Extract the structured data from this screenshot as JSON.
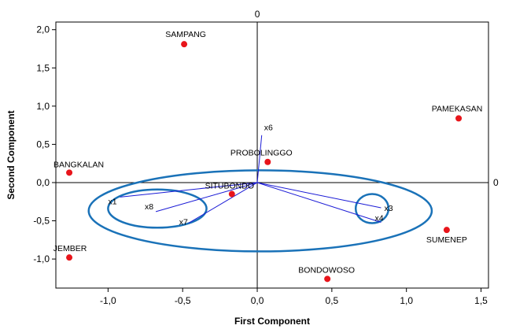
{
  "chart_data": {
    "type": "scatter",
    "title": "",
    "xlabel": "First Component",
    "ylabel": "Second Component",
    "xlim": [
      -1.35,
      1.55
    ],
    "ylim": [
      -1.38,
      2.1
    ],
    "xticks": [
      -1.0,
      -0.5,
      0.0,
      0.5,
      1.0,
      1.5
    ],
    "xtick_labels": [
      "-1,0",
      "-0,5",
      "0,0",
      "0,5",
      "1,0",
      "1,5"
    ],
    "yticks": [
      2.0,
      1.5,
      1.0,
      0.5,
      0.0,
      -0.5,
      -1.0
    ],
    "ytick_labels": [
      "2,0",
      "1,5",
      "1,0",
      "0,5",
      "0,0",
      "-0,5",
      "-1,0"
    ],
    "reference_lines": {
      "x": 0,
      "y": 0,
      "x_label": "0",
      "y_label": "0"
    },
    "grid": false,
    "point_color": "#e8151b",
    "vector_color": "#1b1bd6",
    "ellipse_color": "#1a72b8",
    "points": [
      {
        "label": "SAMPANG",
        "x": -0.49,
        "y": 1.81
      },
      {
        "label": "PAMEKASAN",
        "x": 1.35,
        "y": 0.84
      },
      {
        "label": "BANGKALAN",
        "x": -1.26,
        "y": 0.13
      },
      {
        "label": "PROBOLINGGO",
        "x": 0.07,
        "y": 0.27
      },
      {
        "label": "SITUBONDO",
        "x": -0.17,
        "y": -0.15
      },
      {
        "label": "SUMENEP",
        "x": 1.27,
        "y": -0.62
      },
      {
        "label": "JEMBER",
        "x": -1.26,
        "y": -0.98
      },
      {
        "label": "BONDOWOSO",
        "x": 0.47,
        "y": -1.26
      }
    ],
    "vectors": [
      {
        "label": "x1",
        "x": -0.92,
        "y": -0.19
      },
      {
        "label": "x8",
        "x": -0.68,
        "y": -0.38
      },
      {
        "label": "x7",
        "x": -0.46,
        "y": -0.53
      },
      {
        "label": "x6",
        "x": 0.03,
        "y": 0.62
      },
      {
        "label": "x3",
        "x": 0.83,
        "y": -0.33
      },
      {
        "label": "x4",
        "x": 0.83,
        "y": -0.52
      }
    ],
    "ellipses": [
      {
        "cx": 0.02,
        "cy": -0.37,
        "rx": 1.15,
        "ry": 0.53
      },
      {
        "cx": -0.67,
        "cy": -0.34,
        "rx": 0.33,
        "ry": 0.25
      },
      {
        "cx": 0.77,
        "cy": -0.34,
        "rx": 0.11,
        "ry": 0.19
      }
    ]
  }
}
